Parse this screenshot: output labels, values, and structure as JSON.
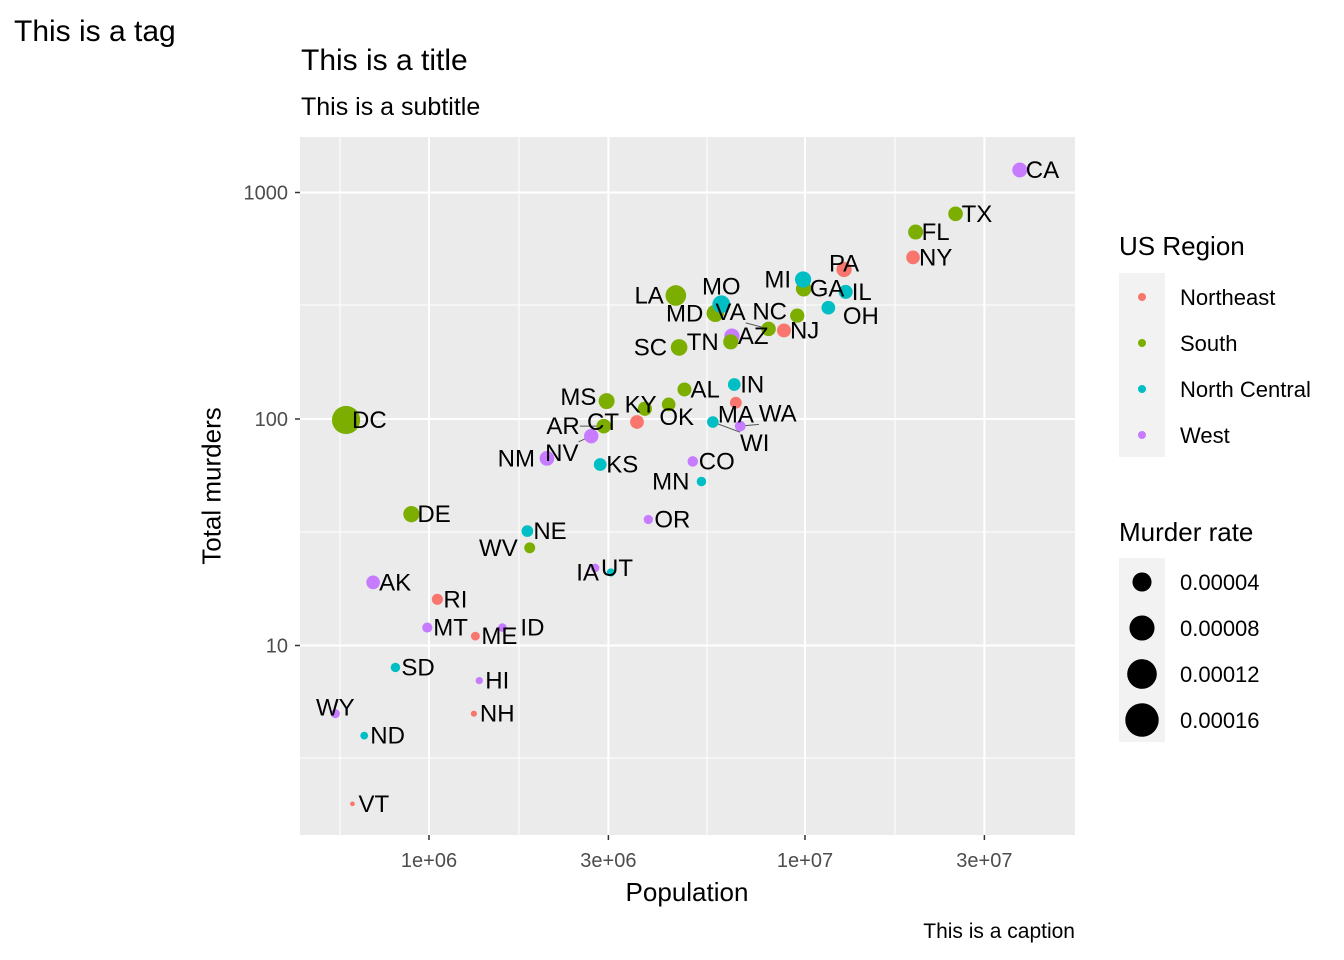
{
  "tag": "This is a tag",
  "title": "This is a title",
  "subtitle": "This is a subtitle",
  "caption": "This is a caption",
  "chart_data": {
    "type": "scatter",
    "xlabel": "Population",
    "ylabel": "Total murders",
    "x_scale": "log10",
    "y_scale": "log10",
    "x_ticks": [
      {
        "v": 1000000,
        "label": "1e+06"
      },
      {
        "v": 3000000,
        "label": "3e+06"
      },
      {
        "v": 10000000,
        "label": "1e+07"
      },
      {
        "v": 30000000,
        "label": "3e+07"
      }
    ],
    "y_ticks": [
      {
        "v": 10,
        "label": "10"
      },
      {
        "v": 100,
        "label": "100"
      },
      {
        "v": 1000,
        "label": "1000"
      }
    ],
    "grid": true,
    "legend_position": "right",
    "color_legend": {
      "title": "US Region",
      "entries": [
        {
          "name": "Northeast",
          "color": "#F8766D"
        },
        {
          "name": "South",
          "color": "#7CAE00"
        },
        {
          "name": "North Central",
          "color": "#00BFC4"
        },
        {
          "name": "West",
          "color": "#C77CFF"
        }
      ]
    },
    "size_legend": {
      "title": "Murder rate",
      "entries": [
        4e-05,
        8e-05,
        0.00012,
        0.00016
      ],
      "labels": [
        "0.00004",
        "0.00008",
        "0.00012",
        "0.00016"
      ]
    },
    "points": [
      {
        "abb": "AL",
        "region": "South",
        "population": 4779736,
        "total": 135
      },
      {
        "abb": "AK",
        "region": "West",
        "population": 710231,
        "total": 19
      },
      {
        "abb": "AZ",
        "region": "West",
        "population": 6392017,
        "total": 232
      },
      {
        "abb": "AR",
        "region": "South",
        "population": 2915918,
        "total": 93
      },
      {
        "abb": "CA",
        "region": "West",
        "population": 37253956,
        "total": 1257
      },
      {
        "abb": "CO",
        "region": "West",
        "population": 5029196,
        "total": 65
      },
      {
        "abb": "CT",
        "region": "Northeast",
        "population": 3574097,
        "total": 97
      },
      {
        "abb": "DE",
        "region": "South",
        "population": 897934,
        "total": 38
      },
      {
        "abb": "DC",
        "region": "South",
        "population": 601723,
        "total": 99
      },
      {
        "abb": "FL",
        "region": "South",
        "population": 19687653,
        "total": 669
      },
      {
        "abb": "GA",
        "region": "South",
        "population": 9920000,
        "total": 376
      },
      {
        "abb": "HI",
        "region": "West",
        "population": 1360301,
        "total": 7
      },
      {
        "abb": "ID",
        "region": "West",
        "population": 1567582,
        "total": 12
      },
      {
        "abb": "IL",
        "region": "North Central",
        "population": 12830632,
        "total": 364
      },
      {
        "abb": "IN",
        "region": "North Central",
        "population": 6483802,
        "total": 142
      },
      {
        "abb": "IA",
        "region": "North Central",
        "population": 3046355,
        "total": 21
      },
      {
        "abb": "KS",
        "region": "North Central",
        "population": 2853118,
        "total": 63
      },
      {
        "abb": "KY",
        "region": "South",
        "population": 4339367,
        "total": 116
      },
      {
        "abb": "LA",
        "region": "South",
        "population": 4533372,
        "total": 351
      },
      {
        "abb": "ME",
        "region": "Northeast",
        "population": 1328361,
        "total": 11
      },
      {
        "abb": "MD",
        "region": "South",
        "population": 5773552,
        "total": 293
      },
      {
        "abb": "MA",
        "region": "Northeast",
        "population": 6547629,
        "total": 118
      },
      {
        "abb": "MI",
        "region": "North Central",
        "population": 9883640,
        "total": 413
      },
      {
        "abb": "MN",
        "region": "North Central",
        "population": 5303925,
        "total": 53
      },
      {
        "abb": "MS",
        "region": "South",
        "population": 2967297,
        "total": 120
      },
      {
        "abb": "MO",
        "region": "North Central",
        "population": 5988927,
        "total": 321
      },
      {
        "abb": "MT",
        "region": "West",
        "population": 989415,
        "total": 12
      },
      {
        "abb": "NE",
        "region": "North Central",
        "population": 1826341,
        "total": 32
      },
      {
        "abb": "NV",
        "region": "West",
        "population": 2700551,
        "total": 84
      },
      {
        "abb": "NH",
        "region": "Northeast",
        "population": 1316470,
        "total": 5
      },
      {
        "abb": "NJ",
        "region": "Northeast",
        "population": 8791894,
        "total": 246
      },
      {
        "abb": "NM",
        "region": "West",
        "population": 2059179,
        "total": 67
      },
      {
        "abb": "NY",
        "region": "Northeast",
        "population": 19378102,
        "total": 517
      },
      {
        "abb": "NC",
        "region": "South",
        "population": 9535483,
        "total": 286
      },
      {
        "abb": "ND",
        "region": "North Central",
        "population": 672591,
        "total": 4
      },
      {
        "abb": "OH",
        "region": "North Central",
        "population": 11536504,
        "total": 310
      },
      {
        "abb": "OK",
        "region": "South",
        "population": 3751351,
        "total": 111
      },
      {
        "abb": "OR",
        "region": "West",
        "population": 3831074,
        "total": 36
      },
      {
        "abb": "PA",
        "region": "Northeast",
        "population": 12702379,
        "total": 457
      },
      {
        "abb": "RI",
        "region": "Northeast",
        "population": 1052567,
        "total": 16
      },
      {
        "abb": "SC",
        "region": "South",
        "population": 4625364,
        "total": 207
      },
      {
        "abb": "SD",
        "region": "North Central",
        "population": 814180,
        "total": 8
      },
      {
        "abb": "TN",
        "region": "South",
        "population": 6346105,
        "total": 219
      },
      {
        "abb": "TX",
        "region": "South",
        "population": 25145561,
        "total": 805
      },
      {
        "abb": "UT",
        "region": "West",
        "population": 2763885,
        "total": 22
      },
      {
        "abb": "VT",
        "region": "Northeast",
        "population": 625741,
        "total": 2
      },
      {
        "abb": "VA",
        "region": "South",
        "population": 8001024,
        "total": 250
      },
      {
        "abb": "WA",
        "region": "West",
        "population": 6724540,
        "total": 93
      },
      {
        "abb": "WV",
        "region": "South",
        "population": 1852994,
        "total": 27
      },
      {
        "abb": "WI",
        "region": "North Central",
        "population": 5686986,
        "total": 97
      },
      {
        "abb": "WY",
        "region": "West",
        "population": 563626,
        "total": 5
      }
    ]
  }
}
